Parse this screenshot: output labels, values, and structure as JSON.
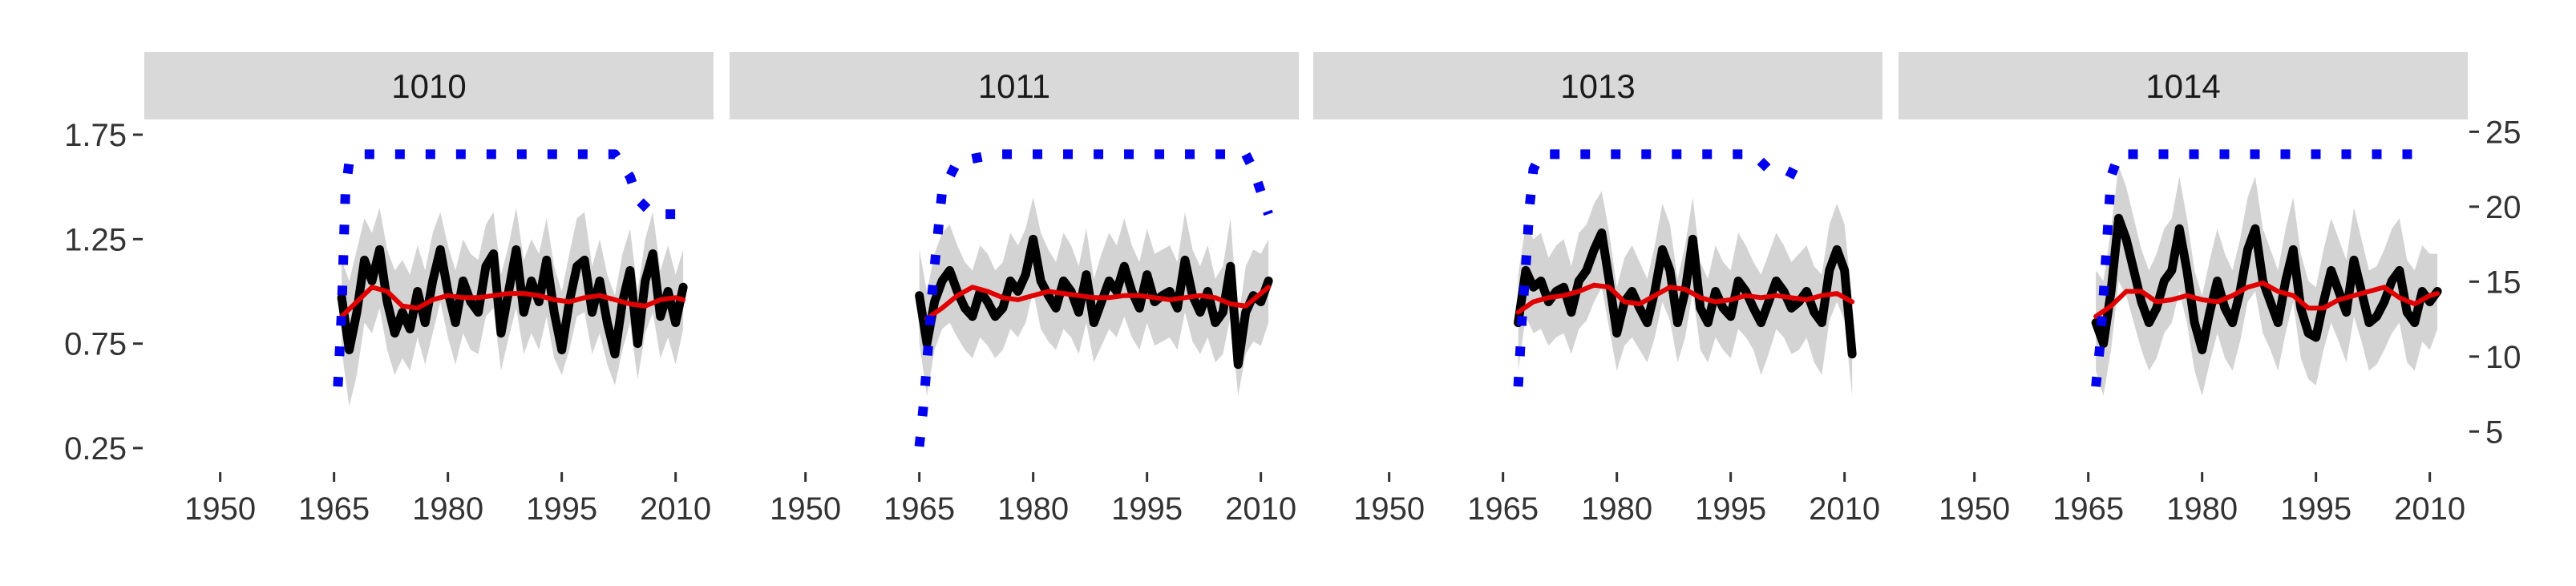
{
  "chart_data": {
    "type": "line",
    "layout": "faceted, four panels in one row, shared x axis range, left and right y axes",
    "x_ticks": [
      1950,
      1965,
      1980,
      1995,
      2010
    ],
    "xlim": [
      1940,
      2015
    ],
    "y_left_ticks": [
      "0.25",
      "0.75",
      "1.25",
      "1.75"
    ],
    "ylim_left": [
      0.15,
      1.8
    ],
    "y_right_ticks": [
      "5",
      "10",
      "15",
      "20",
      "25"
    ],
    "ylim_right": [
      2.5,
      25.5
    ],
    "gridlines": false,
    "colors": {
      "index": "#000000",
      "smooth": "#e00000",
      "band": "#d3d3d3",
      "sample_depth": "#0000ee",
      "strip": "#d9d9d9"
    },
    "panels": [
      {
        "label": "1010",
        "index_x": [
          1966,
          1967,
          1968,
          1969,
          1970,
          1971,
          1972,
          1973,
          1974,
          1975,
          1976,
          1977,
          1978,
          1979,
          1980,
          1981,
          1982,
          1983,
          1984,
          1985,
          1986,
          1987,
          1988,
          1989,
          1990,
          1991,
          1992,
          1993,
          1994,
          1995,
          1996,
          1997,
          1998,
          1999,
          2000,
          2001,
          2002,
          2003,
          2004,
          2005,
          2006,
          2007,
          2008,
          2009,
          2010,
          2011
        ],
        "index_y": [
          0.97,
          0.72,
          0.9,
          1.15,
          1.05,
          1.2,
          0.95,
          0.8,
          0.9,
          0.82,
          1.0,
          0.85,
          1.05,
          1.2,
          1.0,
          0.85,
          1.05,
          0.95,
          0.9,
          1.12,
          1.18,
          0.8,
          1.0,
          1.2,
          0.9,
          1.05,
          0.95,
          1.15,
          0.9,
          0.72,
          0.95,
          1.12,
          1.15,
          0.9,
          1.05,
          0.85,
          0.7,
          0.95,
          1.1,
          0.75,
          1.05,
          1.18,
          0.88,
          1.0,
          0.85,
          1.02
        ],
        "band_low": [
          0.72,
          0.45,
          0.6,
          0.85,
          0.8,
          0.92,
          0.72,
          0.6,
          0.68,
          0.62,
          0.78,
          0.65,
          0.8,
          0.95,
          0.78,
          0.65,
          0.8,
          0.72,
          0.7,
          0.88,
          0.92,
          0.62,
          0.78,
          0.92,
          0.7,
          0.8,
          0.72,
          0.88,
          0.68,
          0.6,
          0.72,
          0.88,
          0.9,
          0.7,
          0.8,
          0.65,
          0.55,
          0.72,
          0.85,
          0.58,
          0.8,
          0.9,
          0.68,
          0.78,
          0.65,
          0.82
        ],
        "band_high": [
          1.15,
          1.05,
          1.2,
          1.35,
          1.28,
          1.4,
          1.2,
          1.1,
          1.15,
          1.08,
          1.22,
          1.1,
          1.28,
          1.38,
          1.22,
          1.1,
          1.25,
          1.18,
          1.15,
          1.32,
          1.38,
          1.08,
          1.22,
          1.4,
          1.15,
          1.25,
          1.18,
          1.35,
          1.12,
          1.0,
          1.18,
          1.35,
          1.38,
          1.12,
          1.25,
          1.08,
          0.98,
          1.18,
          1.3,
          1.0,
          1.25,
          1.38,
          1.1,
          1.22,
          1.08,
          1.2
        ],
        "smooth_x": [
          1966,
          1968,
          1970,
          1972,
          1974,
          1976,
          1978,
          1980,
          1982,
          1984,
          1986,
          1988,
          1990,
          1992,
          1994,
          1996,
          1998,
          2000,
          2002,
          2004,
          2006,
          2008,
          2010,
          2011
        ],
        "smooth_y": [
          0.88,
          0.95,
          1.02,
          1.0,
          0.93,
          0.92,
          0.96,
          0.98,
          0.97,
          0.97,
          0.98,
          0.99,
          0.99,
          0.98,
          0.96,
          0.95,
          0.97,
          0.98,
          0.96,
          0.94,
          0.93,
          0.96,
          0.97,
          0.96
        ],
        "depth_x": [
          1965.5,
          1966,
          1966.5,
          1967,
          1968,
          1970,
          1975,
          1980,
          1985,
          1990,
          1995,
          2000,
          2002,
          2004,
          2005,
          2007,
          2009,
          2011
        ],
        "depth_y": [
          8,
          13,
          21,
          23,
          23.5,
          23.5,
          23.5,
          23.5,
          23.5,
          23.5,
          23.5,
          23.5,
          23.5,
          22,
          20.5,
          19.5,
          19.5,
          19.5
        ]
      },
      {
        "label": "1011",
        "index_x": [
          1965,
          1966,
          1967,
          1968,
          1969,
          1970,
          1971,
          1972,
          1973,
          1974,
          1975,
          1976,
          1977,
          1978,
          1979,
          1980,
          1981,
          1982,
          1983,
          1984,
          1985,
          1986,
          1987,
          1988,
          1989,
          1990,
          1991,
          1992,
          1993,
          1994,
          1995,
          1996,
          1997,
          1998,
          1999,
          2000,
          2001,
          2002,
          2003,
          2004,
          2005,
          2006,
          2007,
          2008,
          2009,
          2010,
          2011
        ],
        "index_y": [
          0.98,
          0.75,
          0.95,
          1.05,
          1.1,
          1.0,
          0.92,
          0.88,
          1.0,
          0.95,
          0.88,
          0.92,
          1.05,
          1.0,
          1.08,
          1.25,
          1.05,
          0.98,
          0.92,
          1.05,
          1.0,
          0.9,
          1.08,
          0.85,
          0.95,
          1.05,
          1.0,
          1.12,
          1.0,
          0.92,
          1.08,
          0.95,
          0.98,
          1.0,
          0.92,
          1.15,
          0.98,
          0.9,
          1.0,
          0.85,
          0.9,
          1.12,
          0.65,
          0.9,
          0.98,
          0.95,
          1.05
        ],
        "band_low": [
          0.75,
          0.5,
          0.72,
          0.82,
          0.85,
          0.78,
          0.72,
          0.68,
          0.78,
          0.74,
          0.68,
          0.72,
          0.82,
          0.78,
          0.85,
          1.0,
          0.82,
          0.76,
          0.72,
          0.82,
          0.78,
          0.7,
          0.85,
          0.66,
          0.74,
          0.82,
          0.78,
          0.88,
          0.78,
          0.72,
          0.85,
          0.74,
          0.76,
          0.78,
          0.72,
          0.9,
          0.76,
          0.7,
          0.78,
          0.66,
          0.7,
          0.88,
          0.5,
          0.7,
          0.76,
          0.74,
          0.85
        ],
        "band_high": [
          1.2,
          1.0,
          1.18,
          1.28,
          1.32,
          1.22,
          1.14,
          1.1,
          1.22,
          1.18,
          1.1,
          1.14,
          1.28,
          1.22,
          1.3,
          1.45,
          1.28,
          1.2,
          1.14,
          1.28,
          1.22,
          1.12,
          1.3,
          1.06,
          1.18,
          1.28,
          1.22,
          1.35,
          1.22,
          1.14,
          1.3,
          1.18,
          1.2,
          1.22,
          1.14,
          1.38,
          1.2,
          1.12,
          1.22,
          1.06,
          1.12,
          1.35,
          0.85,
          1.12,
          1.2,
          1.18,
          1.25
        ],
        "smooth_x": [
          1966,
          1968,
          1970,
          1972,
          1974,
          1976,
          1978,
          1980,
          1982,
          1984,
          1986,
          1988,
          1990,
          1992,
          1994,
          1996,
          1998,
          2000,
          2002,
          2004,
          2006,
          2008,
          2010,
          2011
        ],
        "smooth_y": [
          0.87,
          0.92,
          0.98,
          1.02,
          1.0,
          0.97,
          0.96,
          0.98,
          1.0,
          0.99,
          0.98,
          0.97,
          0.97,
          0.98,
          0.98,
          0.97,
          0.96,
          0.97,
          0.98,
          0.97,
          0.94,
          0.93,
          0.99,
          1.02
        ],
        "depth_x": [
          1965,
          1965.5,
          1966,
          1966.5,
          1967,
          1967.5,
          1968,
          1970,
          1975,
          1980,
          1985,
          1990,
          1995,
          2000,
          2004,
          2006,
          2008,
          2009,
          2010,
          2011
        ],
        "depth_y": [
          4,
          6.5,
          9.5,
          13,
          16,
          18.5,
          21,
          23,
          23.5,
          23.5,
          23.5,
          23.5,
          23.5,
          23.5,
          23.5,
          23.5,
          23.5,
          22.5,
          21,
          19.5
        ]
      },
      {
        "label": "1013",
        "index_x": [
          1967,
          1968,
          1969,
          1970,
          1971,
          1972,
          1973,
          1974,
          1975,
          1976,
          1977,
          1978,
          1979,
          1980,
          1981,
          1982,
          1983,
          1984,
          1985,
          1986,
          1987,
          1988,
          1989,
          1990,
          1991,
          1992,
          1993,
          1994,
          1995,
          1996,
          1997,
          1998,
          1999,
          2000,
          2001,
          2002,
          2003,
          2004,
          2005,
          2006,
          2007,
          2008,
          2009,
          2010,
          2011
        ],
        "index_y": [
          0.85,
          1.1,
          1.02,
          1.05,
          0.95,
          1.0,
          1.02,
          0.9,
          1.05,
          1.1,
          1.2,
          1.28,
          1.05,
          0.8,
          0.95,
          1.0,
          0.92,
          0.85,
          1.0,
          1.2,
          1.1,
          0.85,
          1.0,
          1.25,
          0.92,
          0.85,
          1.0,
          0.92,
          0.88,
          1.05,
          1.0,
          0.92,
          0.85,
          0.95,
          1.05,
          1.0,
          0.92,
          0.95,
          1.0,
          0.9,
          0.85,
          1.1,
          1.2,
          1.1,
          0.7
        ],
        "band_low": [
          0.62,
          0.88,
          0.8,
          0.82,
          0.74,
          0.78,
          0.8,
          0.7,
          0.82,
          0.86,
          0.95,
          1.02,
          0.82,
          0.62,
          0.74,
          0.78,
          0.72,
          0.66,
          0.78,
          0.95,
          0.86,
          0.66,
          0.78,
          1.0,
          0.72,
          0.66,
          0.78,
          0.72,
          0.68,
          0.82,
          0.78,
          0.72,
          0.6,
          0.7,
          0.82,
          0.78,
          0.7,
          0.72,
          0.78,
          0.66,
          0.6,
          0.86,
          0.95,
          0.86,
          0.5
        ],
        "band_high": [
          1.08,
          1.32,
          1.25,
          1.28,
          1.16,
          1.22,
          1.25,
          1.12,
          1.28,
          1.32,
          1.42,
          1.48,
          1.28,
          1.02,
          1.16,
          1.22,
          1.14,
          1.06,
          1.22,
          1.42,
          1.32,
          1.06,
          1.22,
          1.45,
          1.14,
          1.06,
          1.22,
          1.14,
          1.1,
          1.28,
          1.22,
          1.14,
          1.08,
          1.18,
          1.28,
          1.22,
          1.14,
          1.18,
          1.22,
          1.12,
          1.08,
          1.32,
          1.42,
          1.32,
          0.95
        ],
        "smooth_x": [
          1967,
          1969,
          1971,
          1973,
          1975,
          1977,
          1979,
          1981,
          1983,
          1985,
          1987,
          1989,
          1991,
          1993,
          1995,
          1997,
          1999,
          2001,
          2003,
          2005,
          2007,
          2009,
          2011
        ],
        "smooth_y": [
          0.9,
          0.95,
          0.97,
          0.98,
          1.0,
          1.03,
          1.02,
          0.95,
          0.94,
          0.98,
          1.02,
          1.01,
          0.97,
          0.95,
          0.96,
          0.98,
          0.97,
          0.98,
          0.97,
          0.96,
          0.98,
          0.99,
          0.95
        ],
        "depth_x": [
          1967,
          1967.5,
          1968,
          1968.5,
          1969,
          1970,
          1975,
          1980,
          1985,
          1990,
          1995,
          1998,
          2000,
          2002,
          2004,
          2006
        ],
        "depth_y": [
          8,
          12.5,
          16,
          20,
          22.5,
          23.5,
          23.5,
          23.5,
          23.5,
          23.5,
          23.5,
          23.5,
          22.5,
          22.5,
          22,
          21.5
        ]
      },
      {
        "label": "1014",
        "index_x": [
          1966,
          1967,
          1968,
          1969,
          1970,
          1971,
          1972,
          1973,
          1974,
          1975,
          1976,
          1977,
          1978,
          1979,
          1980,
          1981,
          1982,
          1983,
          1984,
          1985,
          1986,
          1987,
          1988,
          1989,
          1990,
          1991,
          1992,
          1993,
          1994,
          1995,
          1996,
          1997,
          1998,
          1999,
          2000,
          2001,
          2002,
          2003,
          2004,
          2005,
          2006,
          2007,
          2008,
          2009,
          2010,
          2011
        ],
        "index_y": [
          0.85,
          0.75,
          1.0,
          1.35,
          1.25,
          1.1,
          0.95,
          0.85,
          0.92,
          1.05,
          1.1,
          1.3,
          1.1,
          0.85,
          0.72,
          0.9,
          1.05,
          0.92,
          0.85,
          1.0,
          1.2,
          1.3,
          1.05,
          0.95,
          0.85,
          1.05,
          1.2,
          0.92,
          0.8,
          0.78,
          0.95,
          1.1,
          1.0,
          0.9,
          1.15,
          1.0,
          0.85,
          0.88,
          0.95,
          1.05,
          1.1,
          0.9,
          0.85,
          1.0,
          0.95,
          1.0
        ],
        "band_low": [
          0.62,
          0.5,
          0.72,
          1.05,
          0.98,
          0.85,
          0.72,
          0.62,
          0.68,
          0.8,
          0.85,
          1.0,
          0.85,
          0.62,
          0.5,
          0.66,
          0.8,
          0.68,
          0.62,
          0.76,
          0.95,
          1.0,
          0.8,
          0.72,
          0.62,
          0.8,
          0.95,
          0.68,
          0.58,
          0.55,
          0.72,
          0.85,
          0.76,
          0.66,
          0.88,
          0.76,
          0.62,
          0.65,
          0.72,
          0.8,
          0.85,
          0.66,
          0.62,
          0.76,
          0.72,
          0.82
        ],
        "band_high": [
          1.1,
          1.05,
          1.3,
          1.6,
          1.5,
          1.35,
          1.2,
          1.1,
          1.18,
          1.3,
          1.35,
          1.55,
          1.35,
          1.1,
          0.98,
          1.15,
          1.3,
          1.18,
          1.1,
          1.25,
          1.45,
          1.55,
          1.3,
          1.2,
          1.1,
          1.3,
          1.45,
          1.18,
          1.05,
          1.02,
          1.2,
          1.35,
          1.25,
          1.15,
          1.4,
          1.25,
          1.1,
          1.12,
          1.2,
          1.3,
          1.35,
          1.15,
          1.1,
          1.22,
          1.18,
          1.18
        ],
        "smooth_x": [
          1966,
          1968,
          1970,
          1972,
          1974,
          1976,
          1978,
          1980,
          1982,
          1984,
          1986,
          1988,
          1990,
          1992,
          1994,
          1996,
          1998,
          2000,
          2002,
          2004,
          2006,
          2008,
          2010,
          2011
        ],
        "smooth_y": [
          0.88,
          0.93,
          1.0,
          1.0,
          0.95,
          0.96,
          0.98,
          0.96,
          0.95,
          0.98,
          1.02,
          1.04,
          1.0,
          0.98,
          0.92,
          0.92,
          0.96,
          0.98,
          1.0,
          1.02,
          0.97,
          0.94,
          0.98,
          0.99
        ],
        "depth_x": [
          1966,
          1966.5,
          1967,
          1967.5,
          1968,
          1969,
          1970,
          1975,
          1980,
          1985,
          1990,
          1995,
          2000,
          2005,
          2010
        ],
        "depth_y": [
          8,
          10.5,
          14,
          18,
          22,
          23.5,
          23.5,
          23.5,
          23.5,
          23.5,
          23.5,
          23.5,
          23.5,
          23.5,
          23.5
        ]
      }
    ]
  }
}
